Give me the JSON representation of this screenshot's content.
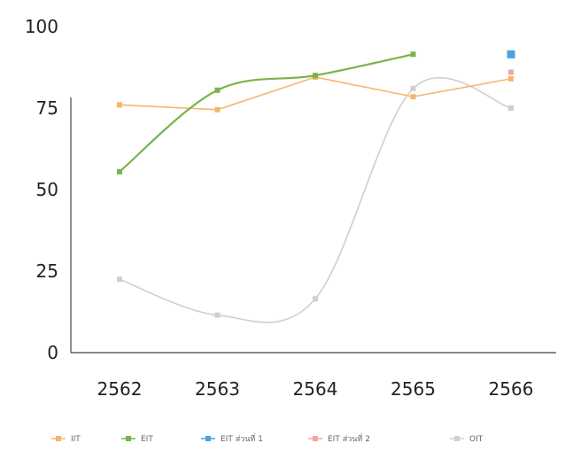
{
  "chart_data": {
    "type": "line",
    "categories": [
      "2562",
      "2563",
      "2564",
      "2565",
      "2566"
    ],
    "ylim": [
      0,
      100
    ],
    "yticks": [
      0,
      25,
      50,
      75,
      100
    ],
    "grid": false,
    "legend_position": "bottom",
    "series": [
      {
        "name": "IIT",
        "color": "#f5b66b",
        "marker": "square",
        "smooth": false,
        "values": [
          76,
          74.5,
          84.5,
          78.5,
          84
        ]
      },
      {
        "name": "EIT",
        "color": "#7bb34a",
        "marker": "square",
        "smooth": true,
        "values": [
          55.5,
          80.5,
          85,
          91.5,
          null
        ]
      },
      {
        "name": "EIT ส่วนที่ 1",
        "color": "#4aa3e0",
        "marker": "square",
        "smooth": false,
        "values": [
          null,
          null,
          null,
          null,
          91.5
        ]
      },
      {
        "name": "EIT ส่วนที่ 2",
        "color": "#f2a7a0",
        "marker": "square",
        "smooth": false,
        "values": [
          null,
          null,
          null,
          null,
          86
        ]
      },
      {
        "name": "OIT",
        "color": "#cfcfcf",
        "marker": "square",
        "smooth": true,
        "values": [
          22.5,
          11.5,
          16.5,
          81,
          75
        ]
      }
    ]
  }
}
